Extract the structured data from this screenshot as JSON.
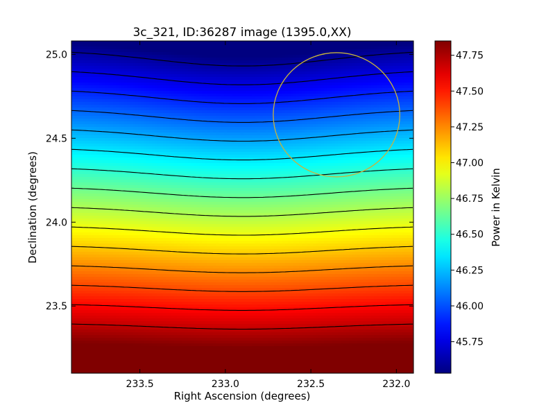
{
  "chart_data": {
    "type": "heatmap",
    "title": "3c_321, ID:36287 image (1395.0,XX)",
    "xlabel": "Right Ascension (degrees)",
    "ylabel": "Declination (degrees)",
    "xlim": [
      233.9,
      231.9
    ],
    "ylim": [
      23.1,
      25.08
    ],
    "x_ticks": [
      {
        "value": 233.5,
        "label": "233.5"
      },
      {
        "value": 233.0,
        "label": "233.0"
      },
      {
        "value": 232.5,
        "label": "232.5"
      },
      {
        "value": 232.0,
        "label": "232.0"
      }
    ],
    "y_ticks": [
      {
        "value": 23.5,
        "label": "23.5"
      },
      {
        "value": 24.0,
        "label": "24.0"
      },
      {
        "value": 24.5,
        "label": "24.5"
      },
      {
        "value": 25.0,
        "label": "25.0"
      }
    ],
    "colorbar": {
      "label": "Power in Kelvin",
      "colormap": "jet",
      "range": [
        45.53,
        47.85
      ],
      "ticks": [
        {
          "value": 45.75,
          "label": "45.75"
        },
        {
          "value": 46.0,
          "label": "46.00"
        },
        {
          "value": 46.25,
          "label": "46.25"
        },
        {
          "value": 46.5,
          "label": "46.50"
        },
        {
          "value": 46.75,
          "label": "46.75"
        },
        {
          "value": 47.0,
          "label": "47.00"
        },
        {
          "value": 47.25,
          "label": "47.25"
        },
        {
          "value": 47.5,
          "label": "47.50"
        },
        {
          "value": 47.75,
          "label": "47.75"
        }
      ]
    },
    "contours": {
      "color": "#000000",
      "levels": [
        45.6,
        45.75,
        45.9,
        46.05,
        46.2,
        46.35,
        46.5,
        46.65,
        46.8,
        46.95,
        47.1,
        47.25,
        47.4,
        47.55,
        47.7
      ]
    },
    "field_model": {
      "base_at_top": 45.53,
      "gradient_per_degree": 1.29,
      "bump_center_ra": 232.9,
      "bump_sigma": 0.5,
      "bump_amplitude_max": 0.13
    },
    "marker_circle": {
      "ra": 232.35,
      "dec": 24.64,
      "radius_deg": 0.37,
      "color": "#c8b43c"
    }
  }
}
